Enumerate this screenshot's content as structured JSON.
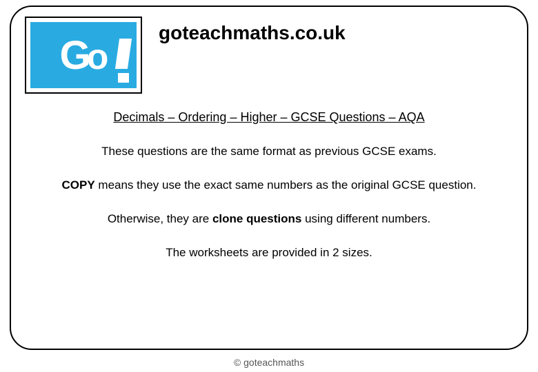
{
  "logo": {
    "text_g": "G",
    "text_o": "o",
    "bg_color": "#29abe2",
    "text_color": "#ffffff"
  },
  "site_title": "goteachmaths.co.uk",
  "subtitle": "Decimals – Ordering – Higher – GCSE Questions – AQA",
  "para1": "These questions are the same format as previous GCSE exams.",
  "para2_prefix": "COPY",
  "para2_rest": " means they use the exact same numbers as the original GCSE question.",
  "para3_prefix": "Otherwise, they are ",
  "para3_bold": "clone questions",
  "para3_suffix": " using different numbers.",
  "para4": "The worksheets are provided in 2 sizes.",
  "footer": "© goteachmaths",
  "colors": {
    "border": "#000000",
    "background": "#ffffff",
    "text": "#000000",
    "footer_text": "#555555"
  },
  "fontsize": {
    "site_title": 28,
    "subtitle": 18,
    "body": 17,
    "footer": 14
  }
}
